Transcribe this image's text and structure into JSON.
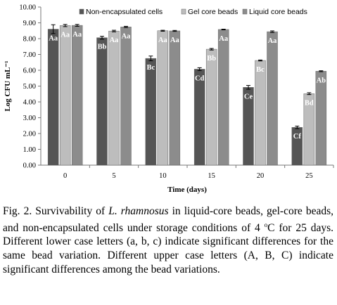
{
  "chart_data": {
    "type": "bar",
    "xlabel": "Time (days)",
    "ylabel": "Log CFU mL⁻¹",
    "ylim": [
      0,
      10
    ],
    "yticks": [
      "0.00",
      "1.00",
      "2.00",
      "3.00",
      "4.00",
      "5.00",
      "6.00",
      "7.00",
      "8.00",
      "9.00",
      "10.00"
    ],
    "categories": [
      "0",
      "5",
      "10",
      "15",
      "20",
      "25"
    ],
    "legend_position": "top-right",
    "series": [
      {
        "name": "Non-encapsulated cells",
        "color": "#555555",
        "values": [
          8.6,
          8.06,
          6.75,
          6.07,
          4.92,
          2.39
        ],
        "errors": [
          0.28,
          0.09,
          0.15,
          0.09,
          0.12,
          0.08
        ],
        "labels": [
          "Aa",
          "Bb",
          "Bc",
          "Cd",
          "Ce",
          "Cf"
        ]
      },
      {
        "name": "Gel core beads",
        "color": "#bdbdbd",
        "values": [
          8.83,
          8.48,
          8.5,
          7.33,
          6.62,
          4.52
        ],
        "errors": [
          0.07,
          0.05,
          0.03,
          0.05,
          0.03,
          0.06
        ],
        "labels": [
          "Aa",
          "Aa",
          "Aa",
          "Bb",
          "Bc",
          "Bd"
        ]
      },
      {
        "name": "Liquid core beads",
        "color": "#8c8c8c",
        "values": [
          8.84,
          8.74,
          8.49,
          8.58,
          8.44,
          5.94
        ],
        "errors": [
          0.06,
          0.04,
          0.03,
          0.02,
          0.05,
          0.03
        ],
        "labels": [
          "Aa",
          "Aa",
          "Aa",
          "Aa",
          "Aa",
          "Ab"
        ]
      }
    ]
  },
  "caption": {
    "prefix": "Fig. 2. Survivability of ",
    "species": "L. rhamnosus",
    "middle": " in liquid-core beads, gel-core beads, and non-encapsulated cells under storage conditions of 4 ",
    "degree_sup": "o",
    "suffix": "C for 25 days. Different lower case letters (a, b, c) indicate significant differences for the same bead variation.  Different upper case letters (A, B, C) indicate significant differences among the bead variations."
  }
}
